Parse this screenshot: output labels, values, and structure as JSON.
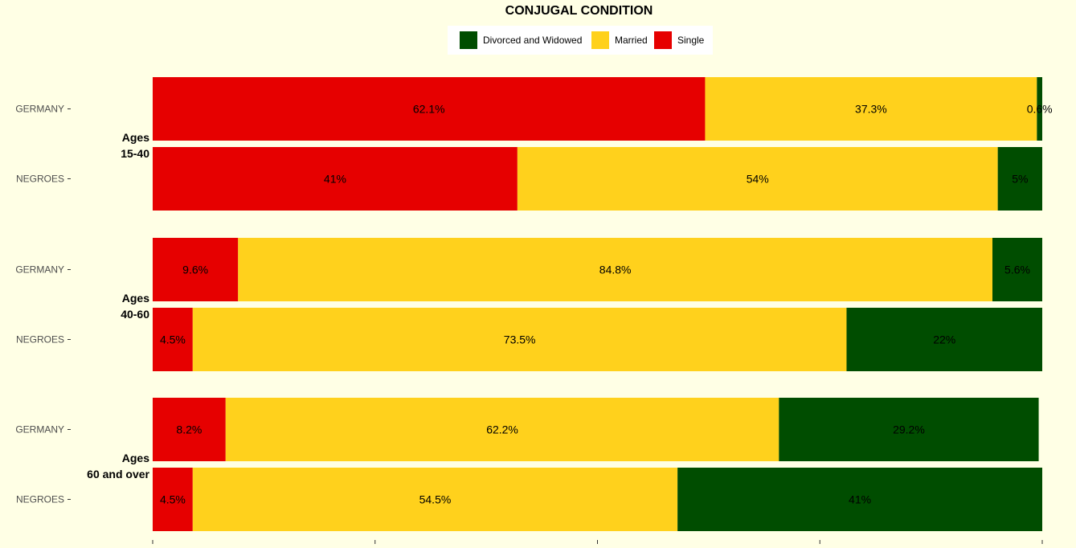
{
  "chart_data": {
    "type": "bar",
    "orientation": "horizontal",
    "stacked": true,
    "title": "CONJUGAL CONDITION",
    "legend_position": "top",
    "series": [
      {
        "name": "Divorced and Widowed",
        "color": "#004D00"
      },
      {
        "name": "Married",
        "color": "#FFD11C"
      },
      {
        "name": "Single",
        "color": "#E60000"
      }
    ],
    "groups": [
      {
        "label_lines": [
          "Ages",
          "15-40"
        ],
        "rows": [
          {
            "category": "GERMANY",
            "values": {
              "Single": 62.1,
              "Married": 37.3,
              "Divorced and Widowed": 0.6
            },
            "labels": {
              "Single": "62.1%",
              "Married": "37.3%",
              "Divorced and Widowed": "0.6%"
            }
          },
          {
            "category": "NEGROES",
            "values": {
              "Single": 41,
              "Married": 54,
              "Divorced and Widowed": 5
            },
            "labels": {
              "Single": "41%",
              "Married": "54%",
              "Divorced and Widowed": "5%"
            }
          }
        ]
      },
      {
        "label_lines": [
          "Ages",
          "40-60"
        ],
        "rows": [
          {
            "category": "GERMANY",
            "values": {
              "Single": 9.6,
              "Married": 84.8,
              "Divorced and Widowed": 5.6
            },
            "labels": {
              "Single": "9.6%",
              "Married": "84.8%",
              "Divorced and Widowed": "5.6%"
            }
          },
          {
            "category": "NEGROES",
            "values": {
              "Single": 4.5,
              "Married": 73.5,
              "Divorced and Widowed": 22
            },
            "labels": {
              "Single": "4.5%",
              "Married": "73.5%",
              "Divorced and Widowed": "22%"
            }
          }
        ]
      },
      {
        "label_lines": [
          "Ages",
          "60 and over"
        ],
        "rows": [
          {
            "category": "GERMANY",
            "values": {
              "Single": 8.2,
              "Married": 62.2,
              "Divorced and Widowed": 29.2
            },
            "labels": {
              "Single": "8.2%",
              "Married": "62.2%",
              "Divorced and Widowed": "29.2%"
            }
          },
          {
            "category": "NEGROES",
            "values": {
              "Single": 4.5,
              "Married": 54.5,
              "Divorced and Widowed": 41
            },
            "labels": {
              "Single": "4.5%",
              "Married": "54.5%",
              "Divorced and Widowed": "41%"
            }
          }
        ]
      }
    ],
    "stack_order": [
      "Single",
      "Married",
      "Divorced and Widowed"
    ],
    "xlim": [
      0,
      100
    ]
  }
}
